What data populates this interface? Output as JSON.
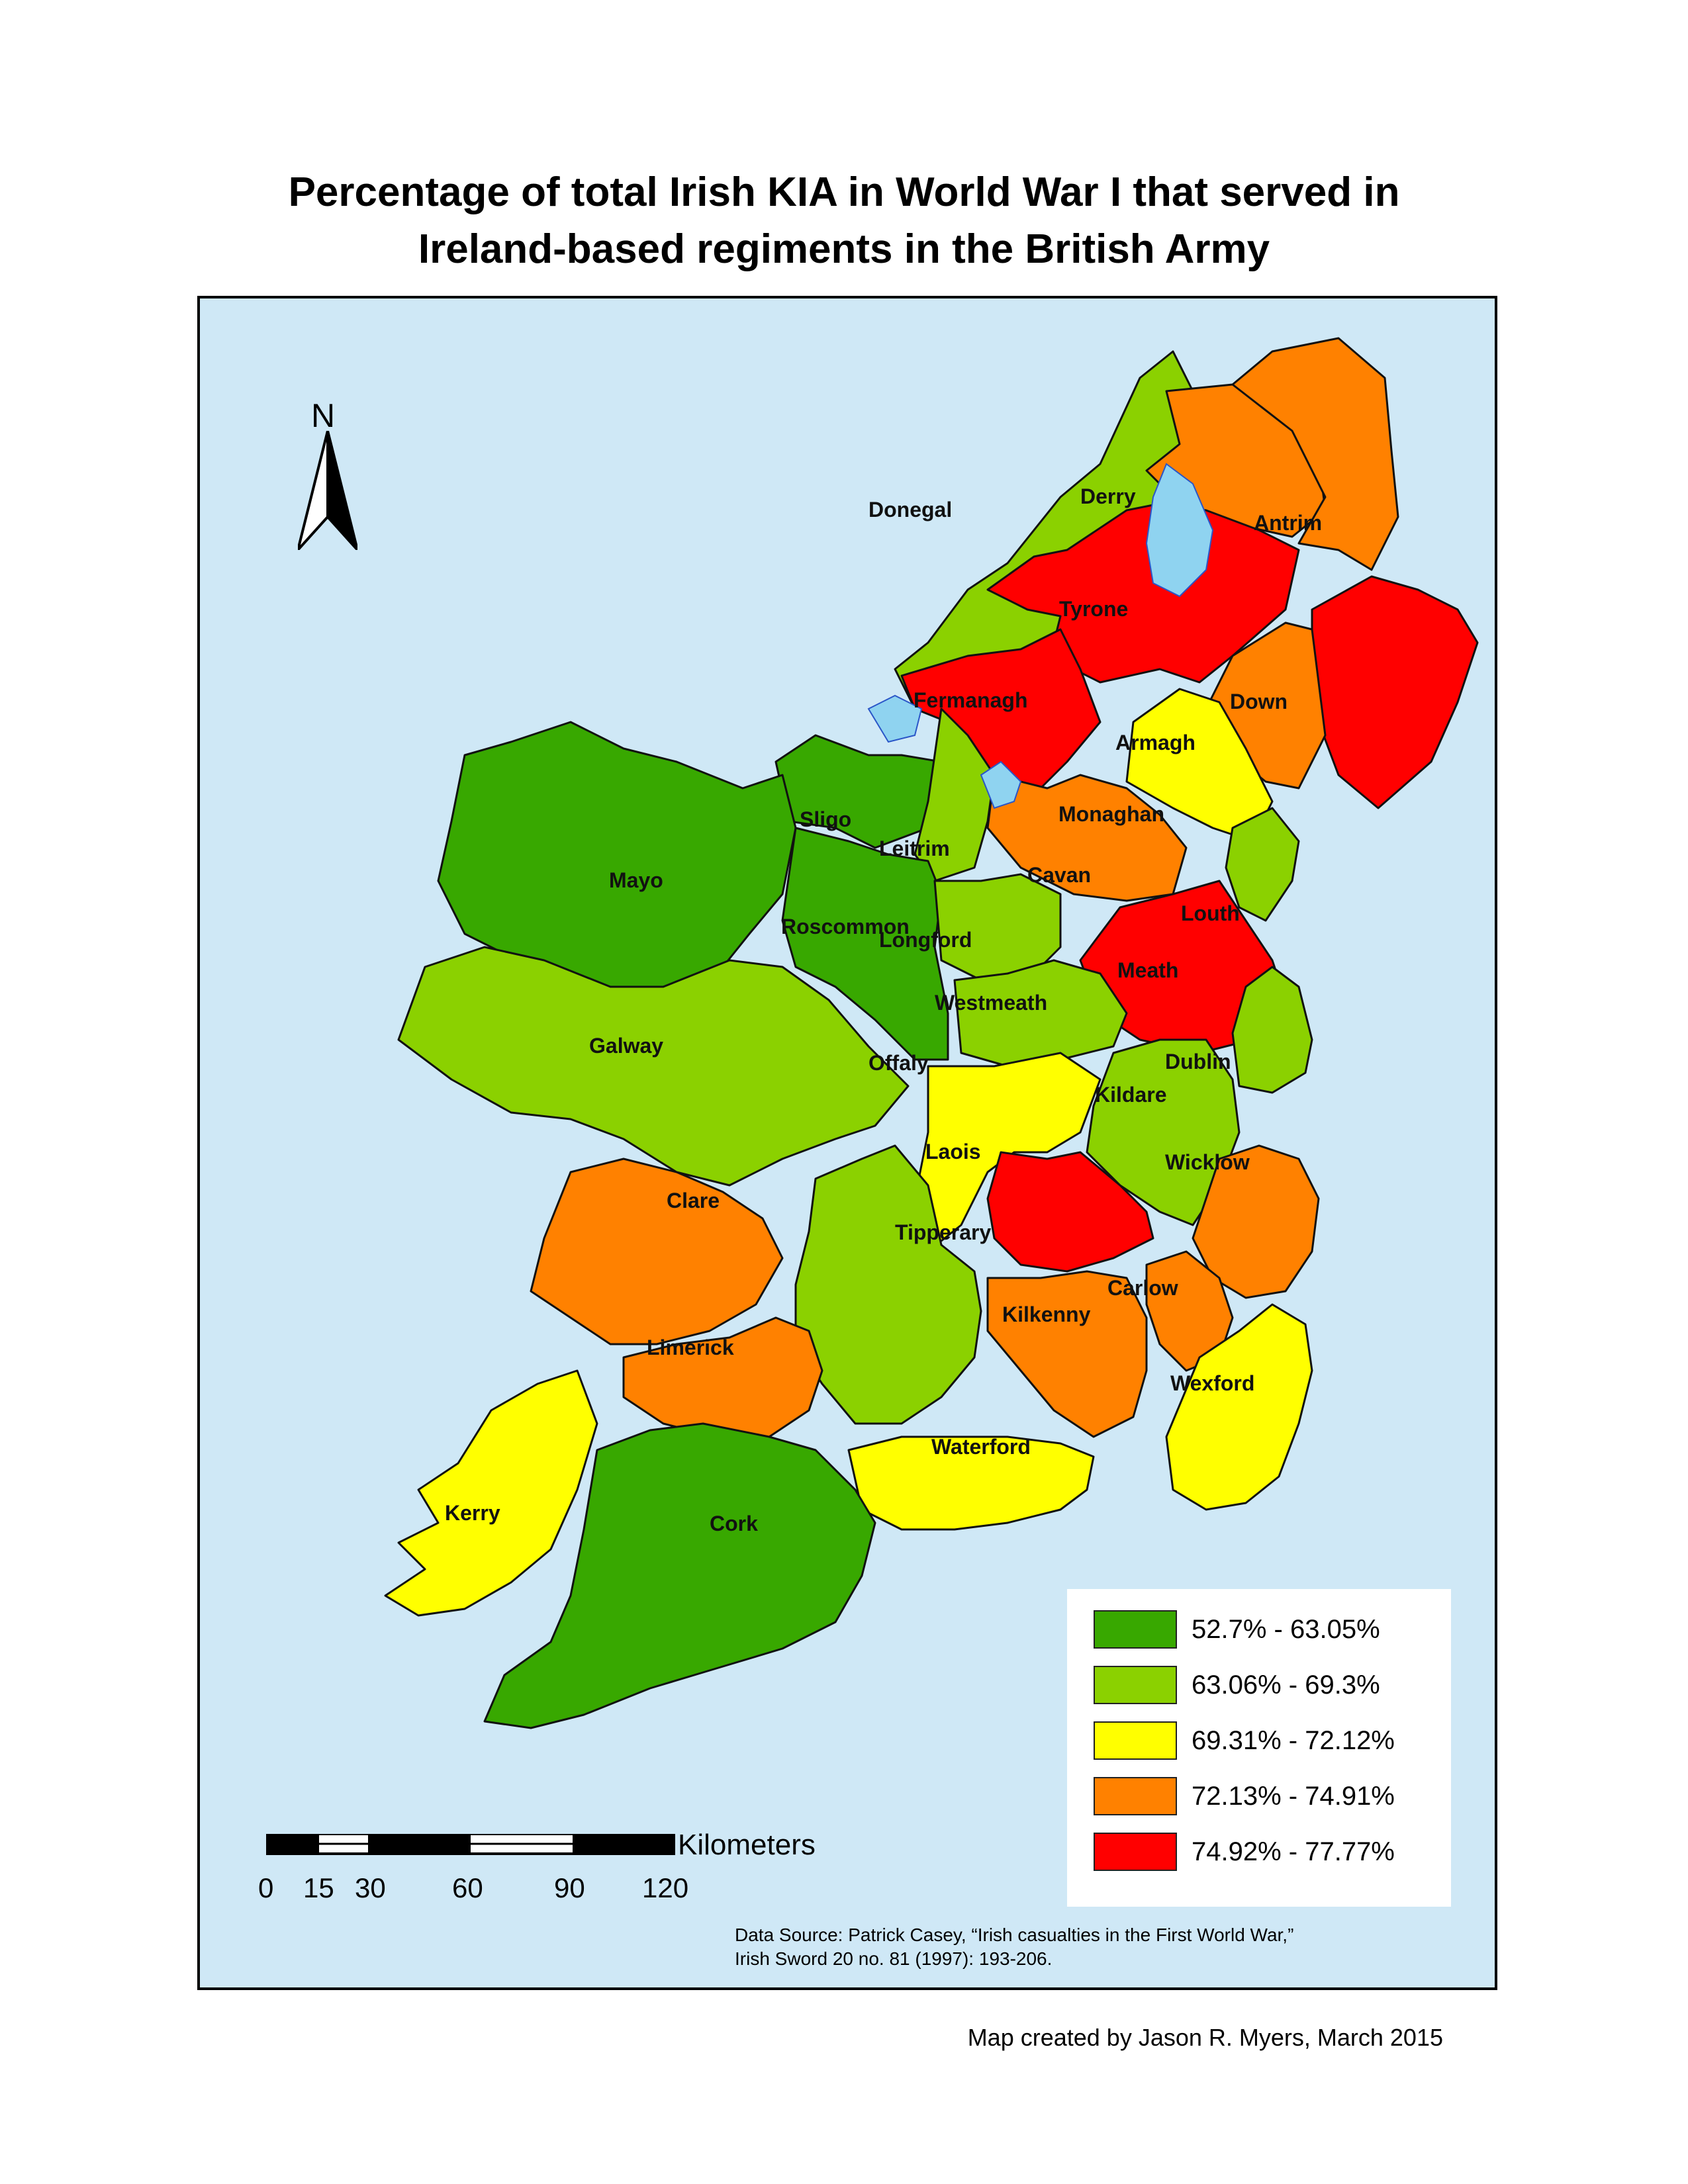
{
  "title": {
    "line1": "Percentage of total Irish KIA in World War I that served in",
    "line2": "Ireland-based regiments in the British Army"
  },
  "colors": {
    "sea": "#cfe8f6",
    "lake": "#8fd3f0",
    "class1": "#38a800",
    "class2": "#8bd100",
    "class3": "#ffff00",
    "class4": "#ff8100",
    "class5": "#ff0000"
  },
  "north_arrow": {
    "letter": "N",
    "icon": "north-arrow-icon"
  },
  "counties": [
    {
      "name": "Donegal",
      "class": 2
    },
    {
      "name": "Derry",
      "class": 4
    },
    {
      "name": "Antrim",
      "class": 4
    },
    {
      "name": "Tyrone",
      "class": 5
    },
    {
      "name": "Fermanagh",
      "class": 5
    },
    {
      "name": "Down",
      "class": 5
    },
    {
      "name": "Armagh",
      "class": 4
    },
    {
      "name": "Monaghan",
      "class": 3
    },
    {
      "name": "Sligo",
      "class": 1
    },
    {
      "name": "Leitrim",
      "class": 2
    },
    {
      "name": "Cavan",
      "class": 4
    },
    {
      "name": "Louth",
      "class": 2
    },
    {
      "name": "Mayo",
      "class": 1
    },
    {
      "name": "Roscommon",
      "class": 1
    },
    {
      "name": "Longford",
      "class": 2
    },
    {
      "name": "Meath",
      "class": 5
    },
    {
      "name": "Westmeath",
      "class": 2
    },
    {
      "name": "Galway",
      "class": 2
    },
    {
      "name": "Offaly",
      "class": 3
    },
    {
      "name": "Dublin",
      "class": 2
    },
    {
      "name": "Kildare",
      "class": 2
    },
    {
      "name": "Laois",
      "class": 5
    },
    {
      "name": "Wicklow",
      "class": 4
    },
    {
      "name": "Clare",
      "class": 4
    },
    {
      "name": "Carlow",
      "class": 4
    },
    {
      "name": "Tipperary",
      "class": 2
    },
    {
      "name": "Kilkenny",
      "class": 4
    },
    {
      "name": "Limerick",
      "class": 4
    },
    {
      "name": "Wexford",
      "class": 3
    },
    {
      "name": "Waterford",
      "class": 3
    },
    {
      "name": "Kerry",
      "class": 3
    },
    {
      "name": "Cork",
      "class": 1
    }
  ],
  "legend": [
    {
      "label": "52.7% - 63.05%",
      "color": "#38a800"
    },
    {
      "label": "63.06% - 69.3%",
      "color": "#8bd100"
    },
    {
      "label": "69.31% - 72.12%",
      "color": "#ffff00"
    },
    {
      "label": "72.13% - 74.91%",
      "color": "#ff8100"
    },
    {
      "label": "74.92% - 77.77%",
      "color": "#ff0000"
    }
  ],
  "scalebar": {
    "units": "Kilometers",
    "ticks": [
      "0",
      "15",
      "30",
      "60",
      "90",
      "120"
    ]
  },
  "source": {
    "line1": "Data Source: Patrick Casey, “Irish casualties in the First World War,”",
    "line2": "Irish Sword 20 no. 81 (1997): 193-206."
  },
  "credit": "Map created by Jason R. Myers, March 2015"
}
